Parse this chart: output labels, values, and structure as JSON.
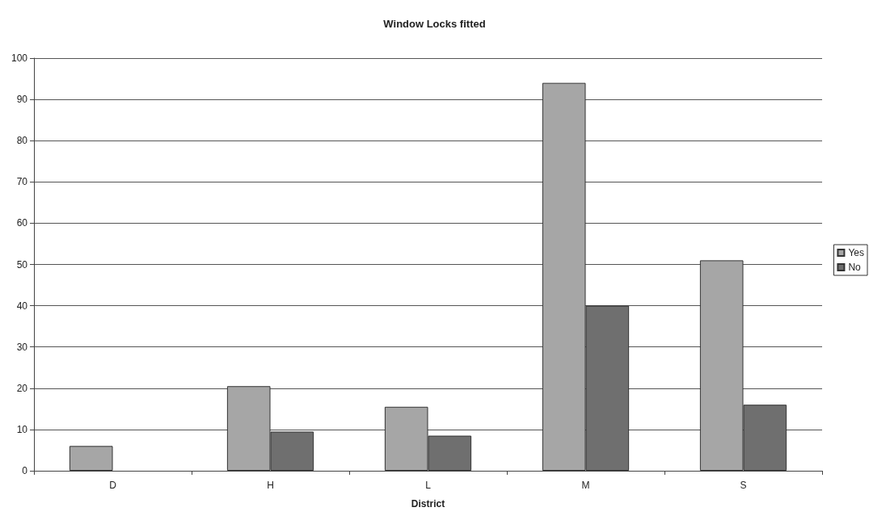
{
  "chart_data": {
    "type": "bar",
    "title": "Window Locks fitted",
    "xlabel": "District",
    "categories": [
      "D",
      "H",
      "L",
      "M",
      "S"
    ],
    "series": [
      {
        "name": "Yes",
        "color": "#a6a6a6",
        "values": [
          6,
          20.5,
          15.5,
          94,
          51
        ]
      },
      {
        "name": "No",
        "color": "#6f6f6f",
        "values": [
          null,
          9.5,
          8.5,
          40,
          16
        ]
      }
    ],
    "ylim": [
      0,
      100
    ],
    "yticks": [
      0,
      10,
      20,
      30,
      40,
      50,
      60,
      70,
      80,
      90,
      100
    ],
    "grid": "y",
    "legend": "right"
  }
}
